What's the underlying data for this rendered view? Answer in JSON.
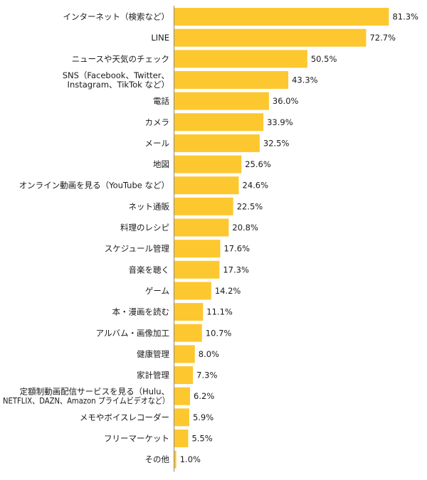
{
  "chart_data": {
    "type": "bar",
    "orientation": "horizontal",
    "title": "",
    "xlabel": "",
    "ylabel": "",
    "value_suffix": "%",
    "xlim": [
      0,
      100
    ],
    "grid": false,
    "legend": "none",
    "bar_color": "#FDC82F",
    "axis_color": "#888888",
    "categories": [
      [
        "インターネット（検索など）"
      ],
      [
        "LINE"
      ],
      [
        "ニュースや天気のチェック"
      ],
      [
        "SNS（Facebook、Twitter、",
        "Instagram、TikTok など）"
      ],
      [
        "電話"
      ],
      [
        "カメラ"
      ],
      [
        "メール"
      ],
      [
        "地図"
      ],
      [
        "オンライン動画を見る（YouTube など）"
      ],
      [
        "ネット通販"
      ],
      [
        "料理のレシピ"
      ],
      [
        "スケジュール管理"
      ],
      [
        "音楽を聴く"
      ],
      [
        "ゲーム"
      ],
      [
        "本・漫画を読む"
      ],
      [
        "アルバム・画像加工"
      ],
      [
        "健康管理"
      ],
      [
        "家計管理"
      ],
      [
        "定額制動画配信サービスを見る（Hulu、",
        "NETFLIX、DAZN、Amazon プライムビデオなど）"
      ],
      [
        "メモやボイスレコーダー"
      ],
      [
        "フリーマーケット"
      ],
      [
        "その他"
      ]
    ],
    "values": [
      81.3,
      72.7,
      50.5,
      43.3,
      36.0,
      33.9,
      32.5,
      25.6,
      24.6,
      22.5,
      20.8,
      17.6,
      17.3,
      14.2,
      11.1,
      10.7,
      8.0,
      7.3,
      6.2,
      5.9,
      5.5,
      1.0
    ],
    "labels": [
      "81.3%",
      "72.7%",
      "50.5%",
      "43.3%",
      "36.0%",
      "33.9%",
      "32.5%",
      "25.6%",
      "24.6%",
      "22.5%",
      "20.8%",
      "17.6%",
      "17.3%",
      "14.2%",
      "11.1%",
      "10.7%",
      "8.0%",
      "7.3%",
      "6.2%",
      "5.9%",
      "5.5%",
      "1.0%"
    ]
  }
}
